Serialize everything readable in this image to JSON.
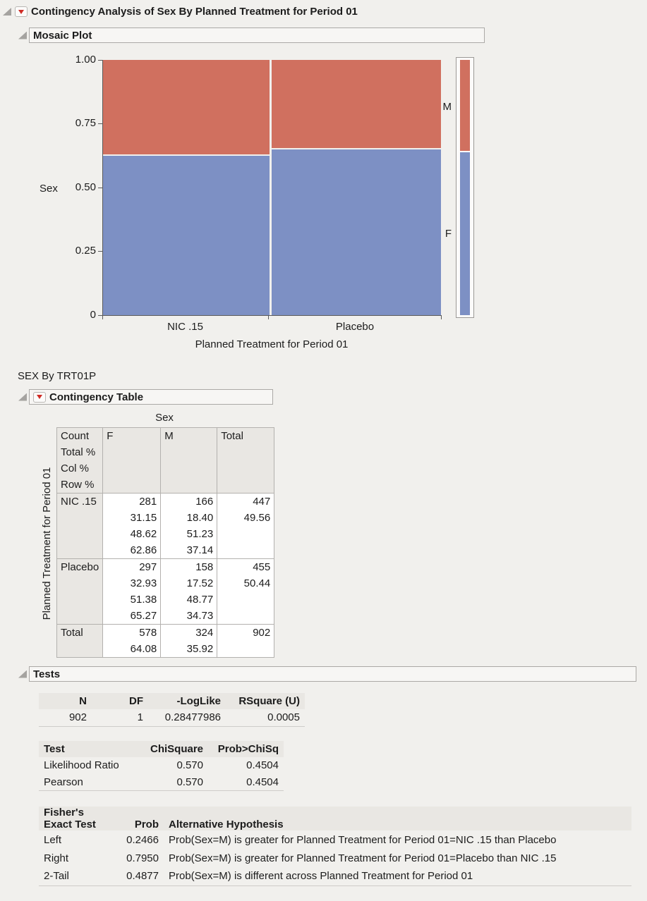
{
  "window": {
    "title": "Contingency Analysis of Sex By Planned Treatment for Period 01"
  },
  "icons": {
    "disclosure_triangle": "open-disclosure-triangle",
    "red_triangle_menu": "red-triangle-menu",
    "accent_red": "#cf2b24"
  },
  "mosaic": {
    "section_title": "Mosaic Plot",
    "y_axis_label": "Sex",
    "y_ticks": [
      "1.00",
      "0.75",
      "0.50",
      "0.25",
      "0"
    ],
    "categories": [
      "NIC .15",
      "Placebo"
    ],
    "x_axis_label": "Planned Treatment for Period 01",
    "level_labels": [
      "M",
      "F"
    ],
    "colors": {
      "f_blue": "#7d90c4",
      "m_red": "#d0705f"
    }
  },
  "chart_data": {
    "type": "mosaic",
    "title": "Mosaic Plot",
    "x": [
      "NIC .15",
      "Placebo"
    ],
    "x_share_pct": [
      49.56,
      50.44
    ],
    "series": [
      {
        "name": "F",
        "col_pct": [
          62.86,
          65.27
        ],
        "counts": [
          281,
          297
        ],
        "color": "#7d90c4"
      },
      {
        "name": "M",
        "col_pct": [
          37.14,
          34.73
        ],
        "counts": [
          166,
          158
        ],
        "color": "#d0705f"
      }
    ],
    "overall_pct": {
      "F": 64.08,
      "M": 35.92
    },
    "xlabel": "Planned Treatment for Period 01",
    "ylabel": "Sex",
    "y_ticks": [
      0,
      0.25,
      0.5,
      0.75,
      1.0
    ],
    "ylim": [
      0,
      1
    ],
    "legend_position": "right"
  },
  "subtitle": "SEX By TRT01P",
  "contingency": {
    "section_title": "Contingency Table",
    "top_label": "Sex",
    "side_label": "Planned Treatment for Period 01",
    "stat_labels": [
      "Count",
      "Total %",
      "Col %",
      "Row %"
    ],
    "col_headers": [
      "F",
      "M",
      "Total"
    ],
    "rows": [
      {
        "label": "NIC .15",
        "F": [
          "281",
          "31.15",
          "48.62",
          "62.86"
        ],
        "M": [
          "166",
          "18.40",
          "51.23",
          "37.14"
        ],
        "Total": [
          "447",
          "49.56",
          "",
          ""
        ]
      },
      {
        "label": "Placebo",
        "F": [
          "297",
          "32.93",
          "51.38",
          "65.27"
        ],
        "M": [
          "158",
          "17.52",
          "48.77",
          "34.73"
        ],
        "Total": [
          "455",
          "50.44",
          "",
          ""
        ]
      },
      {
        "label": "Total",
        "F": [
          "578",
          "64.08"
        ],
        "M": [
          "324",
          "35.92"
        ],
        "Total": [
          "902",
          ""
        ]
      }
    ]
  },
  "tests": {
    "section_title": "Tests",
    "summary": {
      "headers": [
        "N",
        "DF",
        "-LogLike",
        "RSquare (U)"
      ],
      "values": [
        "902",
        "1",
        "0.28477986",
        "0.0005"
      ]
    },
    "chisq": {
      "headers": [
        "Test",
        "ChiSquare",
        "Prob>ChiSq"
      ],
      "rows": [
        [
          "Likelihood Ratio",
          "0.570",
          "0.4504"
        ],
        [
          "Pearson",
          "0.570",
          "0.4504"
        ]
      ]
    },
    "fisher": {
      "header_line1": "Fisher's",
      "header_line2": "Exact Test",
      "prob_header": "Prob",
      "alt_header": "Alternative Hypothesis",
      "rows": [
        {
          "test": "Left",
          "prob": "0.2466",
          "alt": "Prob(Sex=M) is greater for Planned Treatment for Period 01=NIC .15 than Placebo"
        },
        {
          "test": "Right",
          "prob": "0.7950",
          "alt": "Prob(Sex=M) is greater for Planned Treatment for Period 01=Placebo than NIC .15"
        },
        {
          "test": "2-Tail",
          "prob": "0.4877",
          "alt": "Prob(Sex=M) is different across Planned Treatment for Period 01"
        }
      ]
    }
  }
}
